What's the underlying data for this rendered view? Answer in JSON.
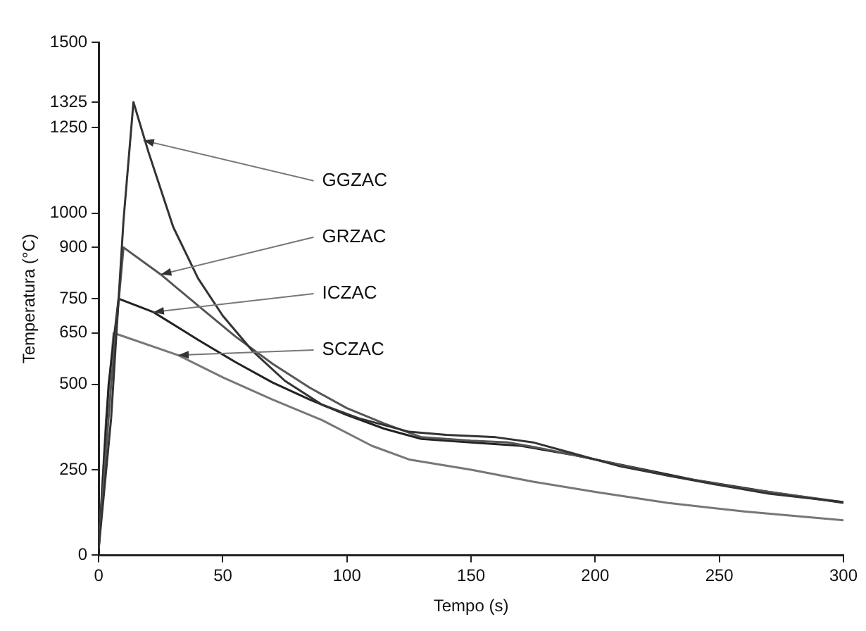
{
  "chart_data": {
    "type": "line",
    "xlabel": "Tempo (s)",
    "ylabel": "Temperatura (°C)",
    "xlim": [
      0,
      300
    ],
    "xticks": [
      0,
      50,
      100,
      150,
      200,
      250,
      300
    ],
    "ylim": [
      0,
      1500
    ],
    "yticks": [
      0,
      250,
      500,
      650,
      750,
      900,
      1000,
      1250,
      1325,
      1500
    ],
    "grid": false,
    "legend": false,
    "marker": "none",
    "line_style": "solid",
    "series": [
      {
        "color": "#333333",
        "x": [
          0,
          5,
          10,
          14,
          20,
          30,
          40,
          50,
          62,
          75,
          90,
          105,
          125,
          140,
          160,
          175,
          190,
          210,
          230,
          250,
          270,
          300
        ],
        "values": [
          20,
          400,
          980,
          1325,
          1180,
          960,
          810,
          700,
          597,
          510,
          440,
          400,
          361,
          352,
          345,
          330,
          300,
          260,
          232,
          205,
          180,
          155
        ]
      },
      {
        "color": "#555555",
        "x": [
          0,
          5,
          10,
          25,
          40,
          55,
          70,
          85,
          100,
          115,
          130,
          150,
          165,
          180,
          200,
          230,
          260,
          300
        ],
        "values": [
          20,
          500,
          900,
          821,
          730,
          640,
          560,
          490,
          430,
          385,
          345,
          335,
          330,
          310,
          280,
          232,
          195,
          155
        ]
      },
      {
        "color": "#222222",
        "x": [
          0,
          4,
          8,
          22,
          40,
          55,
          70,
          85,
          100,
          115,
          130,
          150,
          170,
          190,
          210,
          240,
          270,
          300
        ],
        "values": [
          20,
          500,
          750,
          711,
          630,
          565,
          505,
          455,
          410,
          370,
          340,
          330,
          320,
          295,
          265,
          220,
          185,
          153
        ]
      },
      {
        "color": "#777777",
        "x": [
          0,
          3,
          6,
          32,
          50,
          70,
          90,
          110,
          125,
          150,
          175,
          200,
          229,
          260,
          300
        ],
        "values": [
          20,
          400,
          650,
          585,
          520,
          455,
          395,
          320,
          280,
          250,
          215,
          185,
          153,
          128,
          102
        ]
      }
    ],
    "annotations": [
      {
        "text": "GGZAC",
        "x": 18,
        "y": 1213
      },
      {
        "text": "GRZAC",
        "x": 25,
        "y": 821
      },
      {
        "text": "ICZAC",
        "x": 22,
        "y": 711
      },
      {
        "text": "SCZAC",
        "x": 32,
        "y": 585
      }
    ]
  }
}
